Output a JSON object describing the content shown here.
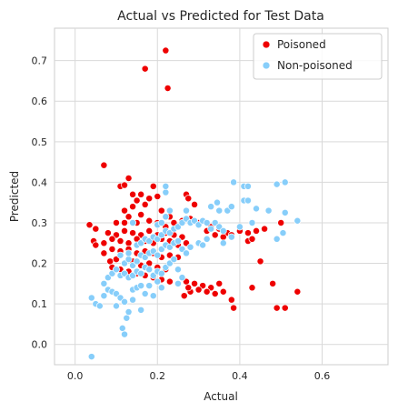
{
  "chart_data": {
    "type": "scatter",
    "title": "Actual vs Predicted for Test Data",
    "xlabel": "Actual",
    "ylabel": "Predicted",
    "xlim": [
      -0.05,
      0.76
    ],
    "ylim": [
      -0.05,
      0.78
    ],
    "x_ticks": [
      0.0,
      0.2,
      0.4,
      0.6
    ],
    "x_tick_labels": [
      "0.0",
      "0.2",
      "0.4",
      "0.6"
    ],
    "y_ticks": [
      0.0,
      0.1,
      0.2,
      0.3,
      0.4,
      0.5,
      0.6,
      0.7
    ],
    "y_tick_labels": [
      "0.0",
      "0.1",
      "0.2",
      "0.3",
      "0.4",
      "0.5",
      "0.6",
      "0.7"
    ],
    "grid": true,
    "legend_position": "top-right",
    "series": [
      {
        "name": "Poisoned",
        "color": "#ee0000",
        "points": [
          [
            0.22,
            0.725
          ],
          [
            0.17,
            0.68
          ],
          [
            0.225,
            0.632
          ],
          [
            0.07,
            0.442
          ],
          [
            0.13,
            0.41
          ],
          [
            0.11,
            0.39
          ],
          [
            0.12,
            0.393
          ],
          [
            0.14,
            0.37
          ],
          [
            0.16,
            0.37
          ],
          [
            0.19,
            0.39
          ],
          [
            0.2,
            0.365
          ],
          [
            0.18,
            0.36
          ],
          [
            0.15,
            0.355
          ],
          [
            0.14,
            0.34
          ],
          [
            0.17,
            0.345
          ],
          [
            0.27,
            0.37
          ],
          [
            0.275,
            0.36
          ],
          [
            0.29,
            0.345
          ],
          [
            0.12,
            0.33
          ],
          [
            0.16,
            0.32
          ],
          [
            0.21,
            0.33
          ],
          [
            0.23,
            0.315
          ],
          [
            0.035,
            0.295
          ],
          [
            0.05,
            0.285
          ],
          [
            0.1,
            0.3
          ],
          [
            0.12,
            0.3
          ],
          [
            0.13,
            0.315
          ],
          [
            0.15,
            0.3
          ],
          [
            0.18,
            0.305
          ],
          [
            0.2,
            0.3
          ],
          [
            0.22,
            0.29
          ],
          [
            0.24,
            0.3
          ],
          [
            0.26,
            0.305
          ],
          [
            0.28,
            0.31
          ],
          [
            0.3,
            0.3
          ],
          [
            0.33,
            0.29
          ],
          [
            0.35,
            0.285
          ],
          [
            0.37,
            0.275
          ],
          [
            0.4,
            0.28
          ],
          [
            0.42,
            0.275
          ],
          [
            0.44,
            0.28
          ],
          [
            0.46,
            0.285
          ],
          [
            0.5,
            0.3
          ],
          [
            0.08,
            0.275
          ],
          [
            0.1,
            0.27
          ],
          [
            0.12,
            0.28
          ],
          [
            0.14,
            0.275
          ],
          [
            0.16,
            0.27
          ],
          [
            0.18,
            0.28
          ],
          [
            0.2,
            0.27
          ],
          [
            0.22,
            0.275
          ],
          [
            0.24,
            0.27
          ],
          [
            0.26,
            0.265
          ],
          [
            0.32,
            0.28
          ],
          [
            0.34,
            0.27
          ],
          [
            0.36,
            0.265
          ],
          [
            0.38,
            0.27
          ],
          [
            0.42,
            0.255
          ],
          [
            0.43,
            0.26
          ],
          [
            0.045,
            0.255
          ],
          [
            0.05,
            0.245
          ],
          [
            0.07,
            0.25
          ],
          [
            0.09,
            0.26
          ],
          [
            0.11,
            0.255
          ],
          [
            0.13,
            0.25
          ],
          [
            0.15,
            0.26
          ],
          [
            0.17,
            0.255
          ],
          [
            0.19,
            0.25
          ],
          [
            0.21,
            0.26
          ],
          [
            0.23,
            0.255
          ],
          [
            0.25,
            0.245
          ],
          [
            0.27,
            0.25
          ],
          [
            0.07,
            0.225
          ],
          [
            0.09,
            0.235
          ],
          [
            0.11,
            0.23
          ],
          [
            0.13,
            0.235
          ],
          [
            0.15,
            0.225
          ],
          [
            0.17,
            0.23
          ],
          [
            0.19,
            0.225
          ],
          [
            0.21,
            0.215
          ],
          [
            0.23,
            0.22
          ],
          [
            0.25,
            0.215
          ],
          [
            0.085,
            0.205
          ],
          [
            0.1,
            0.21
          ],
          [
            0.12,
            0.2
          ],
          [
            0.14,
            0.205
          ],
          [
            0.16,
            0.195
          ],
          [
            0.18,
            0.2
          ],
          [
            0.2,
            0.19
          ],
          [
            0.22,
            0.185
          ],
          [
            0.09,
            0.19
          ],
          [
            0.11,
            0.185
          ],
          [
            0.13,
            0.18
          ],
          [
            0.15,
            0.175
          ],
          [
            0.17,
            0.17
          ],
          [
            0.19,
            0.165
          ],
          [
            0.21,
            0.16
          ],
          [
            0.23,
            0.155
          ],
          [
            0.25,
            0.15
          ],
          [
            0.27,
            0.155
          ],
          [
            0.29,
            0.15
          ],
          [
            0.31,
            0.145
          ],
          [
            0.33,
            0.14
          ],
          [
            0.35,
            0.15
          ],
          [
            0.28,
            0.13
          ],
          [
            0.3,
            0.135
          ],
          [
            0.32,
            0.13
          ],
          [
            0.34,
            0.125
          ],
          [
            0.36,
            0.13
          ],
          [
            0.38,
            0.11
          ],
          [
            0.385,
            0.09
          ],
          [
            0.43,
            0.14
          ],
          [
            0.45,
            0.205
          ],
          [
            0.48,
            0.15
          ],
          [
            0.49,
            0.09
          ],
          [
            0.51,
            0.09
          ],
          [
            0.54,
            0.13
          ],
          [
            0.265,
            0.12
          ],
          [
            0.275,
            0.14
          ]
        ]
      },
      {
        "name": "Non-poisoned",
        "color": "#87cefa",
        "points": [
          [
            0.04,
            -0.03
          ],
          [
            0.04,
            0.115
          ],
          [
            0.05,
            0.1
          ],
          [
            0.06,
            0.095
          ],
          [
            0.07,
            0.12
          ],
          [
            0.07,
            0.15
          ],
          [
            0.08,
            0.135
          ],
          [
            0.09,
            0.13
          ],
          [
            0.1,
            0.125
          ],
          [
            0.11,
            0.115
          ],
          [
            0.115,
            0.04
          ],
          [
            0.12,
            0.025
          ],
          [
            0.125,
            0.065
          ],
          [
            0.13,
            0.08
          ],
          [
            0.1,
            0.095
          ],
          [
            0.12,
            0.105
          ],
          [
            0.14,
            0.11
          ],
          [
            0.16,
            0.085
          ],
          [
            0.17,
            0.125
          ],
          [
            0.19,
            0.12
          ],
          [
            0.14,
            0.135
          ],
          [
            0.15,
            0.14
          ],
          [
            0.16,
            0.145
          ],
          [
            0.08,
            0.165
          ],
          [
            0.09,
            0.175
          ],
          [
            0.1,
            0.185
          ],
          [
            0.11,
            0.17
          ],
          [
            0.12,
            0.175
          ],
          [
            0.13,
            0.165
          ],
          [
            0.14,
            0.17
          ],
          [
            0.15,
            0.18
          ],
          [
            0.16,
            0.175
          ],
          [
            0.17,
            0.19
          ],
          [
            0.18,
            0.185
          ],
          [
            0.19,
            0.17
          ],
          [
            0.2,
            0.18
          ],
          [
            0.21,
            0.175
          ],
          [
            0.22,
            0.19
          ],
          [
            0.23,
            0.2
          ],
          [
            0.24,
            0.21
          ],
          [
            0.25,
            0.185
          ],
          [
            0.12,
            0.2
          ],
          [
            0.13,
            0.21
          ],
          [
            0.14,
            0.195
          ],
          [
            0.15,
            0.205
          ],
          [
            0.16,
            0.22
          ],
          [
            0.17,
            0.215
          ],
          [
            0.18,
            0.225
          ],
          [
            0.19,
            0.23
          ],
          [
            0.2,
            0.22
          ],
          [
            0.21,
            0.235
          ],
          [
            0.22,
            0.245
          ],
          [
            0.23,
            0.24
          ],
          [
            0.24,
            0.25
          ],
          [
            0.25,
            0.255
          ],
          [
            0.26,
            0.235
          ],
          [
            0.27,
            0.225
          ],
          [
            0.28,
            0.24
          ],
          [
            0.15,
            0.245
          ],
          [
            0.16,
            0.25
          ],
          [
            0.17,
            0.26
          ],
          [
            0.18,
            0.255
          ],
          [
            0.19,
            0.265
          ],
          [
            0.2,
            0.26
          ],
          [
            0.21,
            0.27
          ],
          [
            0.22,
            0.28
          ],
          [
            0.23,
            0.275
          ],
          [
            0.24,
            0.285
          ],
          [
            0.25,
            0.29
          ],
          [
            0.26,
            0.3
          ],
          [
            0.27,
            0.31
          ],
          [
            0.14,
            0.3
          ],
          [
            0.2,
            0.295
          ],
          [
            0.21,
            0.3
          ],
          [
            0.22,
            0.315
          ],
          [
            0.23,
            0.33
          ],
          [
            0.22,
            0.375
          ],
          [
            0.22,
            0.39
          ],
          [
            0.27,
            0.33
          ],
          [
            0.28,
            0.3
          ],
          [
            0.29,
            0.305
          ],
          [
            0.3,
            0.295
          ],
          [
            0.31,
            0.305
          ],
          [
            0.32,
            0.3
          ],
          [
            0.33,
            0.285
          ],
          [
            0.34,
            0.3
          ],
          [
            0.35,
            0.29
          ],
          [
            0.36,
            0.28
          ],
          [
            0.33,
            0.34
          ],
          [
            0.345,
            0.35
          ],
          [
            0.35,
            0.33
          ],
          [
            0.37,
            0.33
          ],
          [
            0.38,
            0.34
          ],
          [
            0.385,
            0.4
          ],
          [
            0.41,
            0.39
          ],
          [
            0.42,
            0.39
          ],
          [
            0.43,
            0.3
          ],
          [
            0.4,
            0.29
          ],
          [
            0.38,
            0.265
          ],
          [
            0.36,
            0.25
          ],
          [
            0.41,
            0.355
          ],
          [
            0.42,
            0.355
          ],
          [
            0.44,
            0.335
          ],
          [
            0.47,
            0.33
          ],
          [
            0.49,
            0.395
          ],
          [
            0.51,
            0.4
          ],
          [
            0.51,
            0.325
          ],
          [
            0.54,
            0.305
          ],
          [
            0.49,
            0.26
          ],
          [
            0.505,
            0.275
          ],
          [
            0.25,
            0.15
          ],
          [
            0.26,
            0.165
          ],
          [
            0.3,
            0.25
          ],
          [
            0.31,
            0.245
          ],
          [
            0.32,
            0.26
          ],
          [
            0.18,
            0.145
          ],
          [
            0.2,
            0.155
          ],
          [
            0.21,
            0.14
          ],
          [
            0.11,
            0.22
          ],
          [
            0.13,
            0.225
          ]
        ]
      }
    ]
  }
}
